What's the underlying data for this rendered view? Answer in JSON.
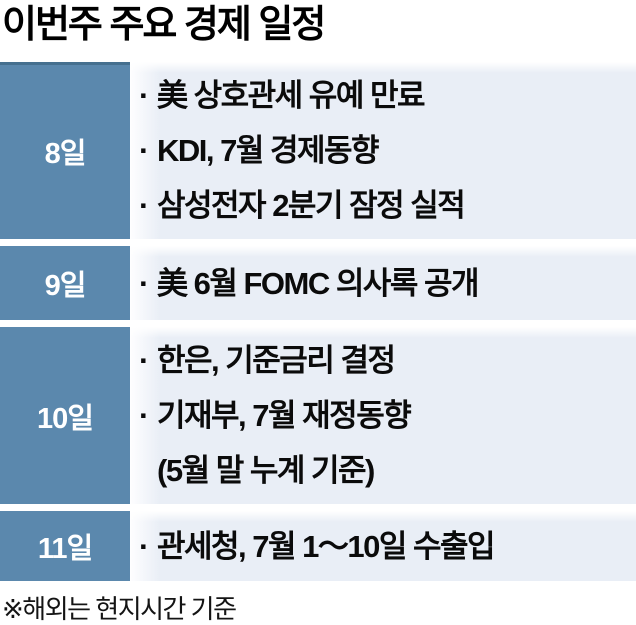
{
  "title": "이번주 주요 경제 일정",
  "bullet": "·",
  "footnote": "※해외는 현지시간 기준",
  "colors": {
    "day_cell_bg": "#5b88ad",
    "day_cell_top_edge": "#46708f",
    "content_bg": "#e9eef6",
    "day_text": "#ffffff",
    "text": "#0b0b0b",
    "page_bg": "#ffffff"
  },
  "schedule": [
    {
      "day": "8일",
      "items": [
        "美 상호관세 유예 만료",
        "KDI, 7월 경제동향",
        "삼성전자 2분기 잠정 실적"
      ]
    },
    {
      "day": "9일",
      "items": [
        "美 6월 FOMC 의사록 공개"
      ]
    },
    {
      "day": "10일",
      "items": [
        "한은, 기준금리 결정",
        "기재부, 7월 재정동향",
        "(5월 말 누계 기준)"
      ],
      "continuation_note": "(5월 말 누계 기준) is an indented continuation of the previous item"
    },
    {
      "day": "11일",
      "items": [
        "관세청, 7월 1～10일 수출입"
      ]
    }
  ]
}
